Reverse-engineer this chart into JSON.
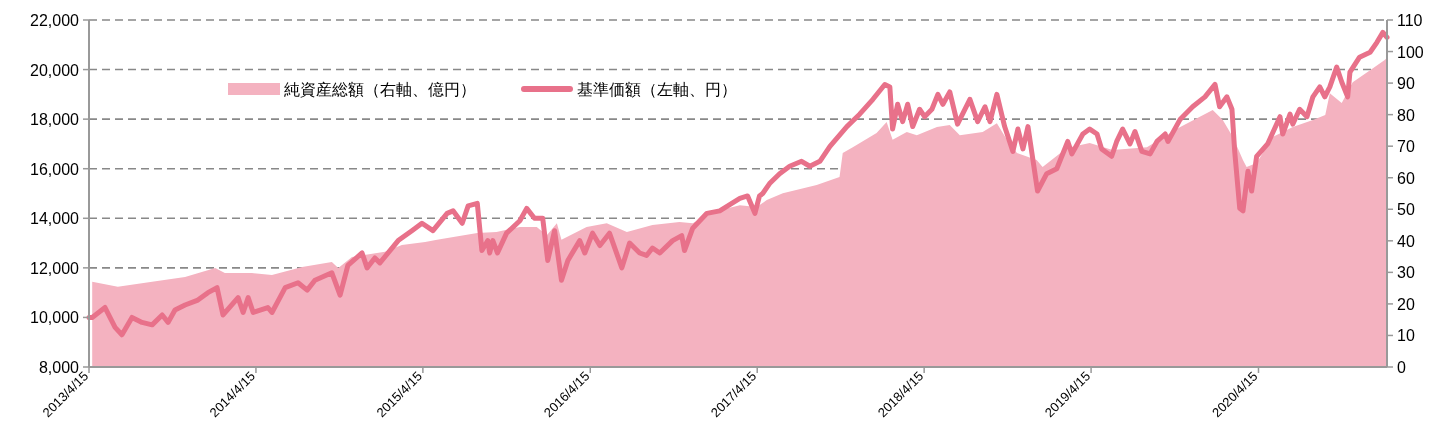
{
  "chart_data": {
    "type": "line",
    "xlim": [
      "2013-04-15",
      "2021-01-21"
    ],
    "xticks": [
      {
        "value": "2013-04-15",
        "label": "2013/4/15"
      },
      {
        "value": "2014-04-15",
        "label": "2014/4/15"
      },
      {
        "value": "2015-04-15",
        "label": "2015/4/15"
      },
      {
        "value": "2016-04-15",
        "label": "2016/4/15"
      },
      {
        "value": "2017-04-15",
        "label": "2017/4/15"
      },
      {
        "value": "2018-04-15",
        "label": "2018/4/15"
      },
      {
        "value": "2019-04-15",
        "label": "2019/4/15"
      },
      {
        "value": "2020-04-15",
        "label": "2020/4/15"
      }
    ],
    "ylim": [
      8000,
      22000
    ],
    "yticks": [
      {
        "value": 8000,
        "label": "8,000"
      },
      {
        "value": 10000,
        "label": "10,000"
      },
      {
        "value": 12000,
        "label": "12,000"
      },
      {
        "value": 14000,
        "label": "14,000"
      },
      {
        "value": 16000,
        "label": "16,000"
      },
      {
        "value": 18000,
        "label": "18,000"
      },
      {
        "value": 20000,
        "label": "20,000"
      },
      {
        "value": 22000,
        "label": "22,000"
      }
    ],
    "y2lim": [
      0,
      110
    ],
    "y2ticks": [
      0,
      10,
      20,
      30,
      40,
      50,
      60,
      70,
      80,
      90,
      100,
      110
    ],
    "grid": "y",
    "legend": "top left",
    "series": [
      {
        "name": "純資産総額（右軸、億円）",
        "type": "area",
        "axis": "y2",
        "color": "#f4b2c0",
        "x": [
          "2013-04-22",
          "2013-06-17",
          "2013-08-31",
          "2013-11-11",
          "2014-01-16",
          "2014-02-06",
          "2014-04-06",
          "2014-05-20",
          "2014-07-25",
          "2014-09-28",
          "2014-10-12",
          "2014-11-11",
          "2015-01-22",
          "2015-02-28",
          "2015-04-20",
          "2015-05-16",
          "2015-08-12",
          "2015-09-23",
          "2015-11-13",
          "2015-12-20",
          "2016-01-11",
          "2016-02-02",
          "2016-02-12",
          "2016-04-07",
          "2016-05-21",
          "2016-07-04",
          "2016-08-29",
          "2016-10-27",
          "2016-11-25",
          "2017-01-08",
          "2017-03-08",
          "2017-04-14",
          "2017-05-06",
          "2017-06-10",
          "2017-08-23",
          "2017-10-12",
          "2017-10-19",
          "2017-11-10",
          "2018-01-01",
          "2018-01-23",
          "2018-02-05",
          "2018-03-08",
          "2018-03-30",
          "2018-05-13",
          "2018-06-10",
          "2018-07-02",
          "2018-08-21",
          "2018-09-21",
          "2018-10-13",
          "2018-11-04",
          "2018-12-17",
          "2018-12-30",
          "2019-02-21",
          "2019-04-12",
          "2019-06-01",
          "2019-08-15",
          "2019-10-27",
          "2020-01-06",
          "2020-01-28",
          "2020-02-19",
          "2020-03-12",
          "2020-03-20",
          "2020-04-11",
          "2020-05-16",
          "2020-06-29",
          "2020-08-12",
          "2020-09-08",
          "2020-09-18",
          "2020-10-14",
          "2020-11-07",
          "2020-12-15",
          "2021-01-16",
          "2021-01-21"
        ],
        "values": [
          27,
          25.4,
          27,
          28.5,
          31.4,
          29.8,
          29.8,
          29.2,
          31.7,
          33.3,
          31.4,
          34.9,
          36.5,
          38.7,
          39.6,
          40.3,
          42.5,
          42.8,
          44.4,
          44.4,
          41.8,
          45.6,
          40.3,
          44.4,
          45.6,
          42.8,
          45,
          46,
          45.6,
          49.1,
          51.3,
          50.7,
          52.9,
          55.1,
          57.7,
          60.2,
          67.8,
          69.7,
          74.2,
          77.7,
          72,
          74.5,
          73.5,
          76.1,
          76.7,
          73.5,
          74.5,
          77.3,
          72,
          67.8,
          65.6,
          63.4,
          69.4,
          71,
          68.8,
          69.7,
          76.1,
          81.5,
          78.3,
          72.9,
          65.6,
          63.4,
          64.7,
          72.9,
          76.1,
          78.3,
          79.9,
          86.8,
          83.7,
          90.3,
          94.1,
          97.3,
          98
        ]
      },
      {
        "name": "基準価額（左軸、円）",
        "color": "#e8718a",
        "x": [
          "2013-04-15",
          "2013-04-22",
          "2013-05-20",
          "2013-06-11",
          "2013-06-26",
          "2013-07-18",
          "2013-08-09",
          "2013-08-31",
          "2013-09-22",
          "2013-10-05",
          "2013-10-20",
          "2013-11-11",
          "2013-12-09",
          "2013-12-31",
          "2014-01-20",
          "2014-02-02",
          "2014-03-07",
          "2014-03-18",
          "2014-03-29",
          "2014-04-09",
          "2014-05-11",
          "2014-05-20",
          "2014-06-18",
          "2014-07-16",
          "2014-08-05",
          "2014-08-22",
          "2014-09-28",
          "2014-10-16",
          "2014-11-02",
          "2014-12-03",
          "2014-12-14",
          "2014-12-31",
          "2015-01-11",
          "2015-02-20",
          "2015-03-22",
          "2015-04-13",
          "2015-05-07",
          "2015-06-07",
          "2015-06-20",
          "2015-07-10",
          "2015-07-23",
          "2015-08-12",
          "2015-08-22",
          "2015-09-04",
          "2015-09-08",
          "2015-09-15",
          "2015-09-25",
          "2015-10-15",
          "2015-11-13",
          "2015-11-28",
          "2015-12-15",
          "2016-01-02",
          "2016-01-13",
          "2016-01-28",
          "2016-02-12",
          "2016-02-26",
          "2016-03-23",
          "2016-04-03",
          "2016-04-20",
          "2016-05-06",
          "2016-05-27",
          "2016-06-23",
          "2016-07-10",
          "2016-08-01",
          "2016-08-16",
          "2016-08-29",
          "2016-09-14",
          "2016-10-12",
          "2016-11-01",
          "2016-11-07",
          "2016-11-25",
          "2016-12-26",
          "2017-01-23",
          "2017-03-08",
          "2017-03-25",
          "2017-04-10",
          "2017-04-20",
          "2017-04-27",
          "2017-05-12",
          "2017-06-03",
          "2017-06-25",
          "2017-07-21",
          "2017-08-08",
          "2017-08-30",
          "2017-09-21",
          "2017-10-28",
          "2017-11-25",
          "2017-12-24",
          "2018-01-19",
          "2018-01-30",
          "2018-02-05",
          "2018-02-16",
          "2018-02-27",
          "2018-03-10",
          "2018-03-21",
          "2018-04-05",
          "2018-04-16",
          "2018-05-02",
          "2018-05-15",
          "2018-05-26",
          "2018-06-10",
          "2018-06-27",
          "2018-07-24",
          "2018-08-10",
          "2018-08-26",
          "2018-09-06",
          "2018-09-21",
          "2018-10-08",
          "2018-10-26",
          "2018-11-06",
          "2018-11-17",
          "2018-11-28",
          "2018-12-19",
          "2019-01-08",
          "2019-01-30",
          "2019-02-23",
          "2019-03-04",
          "2019-03-28",
          "2019-04-12",
          "2019-04-28",
          "2019-05-08",
          "2019-05-30",
          "2019-06-10",
          "2019-06-23",
          "2019-07-09",
          "2019-07-20",
          "2019-08-04",
          "2019-08-22",
          "2019-09-06",
          "2019-09-24",
          "2019-09-30",
          "2019-10-27",
          "2019-11-23",
          "2019-12-20",
          "2020-01-11",
          "2020-01-21",
          "2020-02-06",
          "2020-02-17",
          "2020-02-23",
          "2020-03-05",
          "2020-03-12",
          "2020-03-23",
          "2020-03-31",
          "2020-04-11",
          "2020-05-05",
          "2020-06-01",
          "2020-06-07",
          "2020-06-23",
          "2020-06-29",
          "2020-07-14",
          "2020-07-30",
          "2020-08-12",
          "2020-08-27",
          "2020-09-07",
          "2020-09-18",
          "2020-10-03",
          "2020-10-14",
          "2020-10-27",
          "2020-11-01",
          "2020-11-22",
          "2020-12-15",
          "2020-12-30",
          "2021-01-12",
          "2021-01-21"
        ],
        "values": [
          10000,
          10000,
          10400,
          9600,
          9300,
          10000,
          9800,
          9700,
          10100,
          9800,
          10300,
          10500,
          10700,
          11000,
          11200,
          10100,
          10800,
          10200,
          10800,
          10200,
          10400,
          10200,
          11200,
          11400,
          11100,
          11500,
          11800,
          10900,
          12100,
          12600,
          12000,
          12400,
          12200,
          13100,
          13500,
          13800,
          13500,
          14200,
          14300,
          13800,
          14500,
          14600,
          12700,
          13100,
          12600,
          13100,
          12600,
          13400,
          13900,
          14400,
          14000,
          14000,
          12300,
          13500,
          11500,
          12300,
          13100,
          12600,
          13400,
          12900,
          13400,
          12000,
          13000,
          12600,
          12500,
          12800,
          12600,
          13100,
          13300,
          12700,
          13600,
          14200,
          14300,
          14800,
          14900,
          14200,
          14900,
          15000,
          15400,
          15800,
          16100,
          16300,
          16100,
          16300,
          16900,
          17700,
          18200,
          18800,
          19400,
          19300,
          17600,
          18600,
          17900,
          18600,
          17700,
          18400,
          18100,
          18400,
          19000,
          18600,
          19100,
          17800,
          18800,
          17900,
          18500,
          17900,
          19000,
          17700,
          16700,
          17600,
          16800,
          17700,
          15100,
          15800,
          16000,
          17100,
          16600,
          17400,
          17600,
          17400,
          16800,
          16500,
          17100,
          17600,
          17000,
          17500,
          16700,
          16600,
          17100,
          17400,
          17100,
          18000,
          18500,
          18900,
          19400,
          18500,
          18900,
          18400,
          16700,
          14400,
          14300,
          15900,
          15100,
          16500,
          17000,
          18100,
          17400,
          18200,
          17800,
          18400,
          18100,
          18900,
          19300,
          18900,
          19300,
          20100,
          19500,
          18900,
          19900,
          20500,
          20700,
          21100,
          21500,
          21300
        ]
      }
    ]
  }
}
